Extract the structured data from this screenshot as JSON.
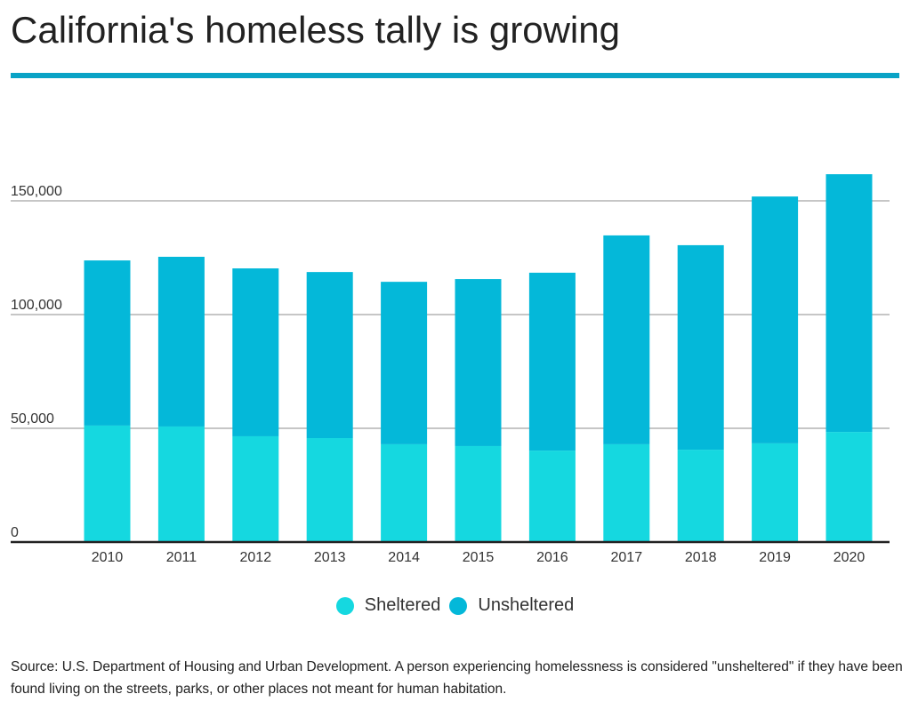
{
  "title": "California's homeless tally is growing",
  "colors": {
    "accent": "#0aa3c6",
    "sheltered": "#15d8e0",
    "unsheltered": "#04b8d9"
  },
  "legend": [
    {
      "label": "Sheltered",
      "color": "#15d8e0"
    },
    {
      "label": "Unsheltered",
      "color": "#04b8d9"
    }
  ],
  "source": "Source: U.S. Department of Housing and Urban Development. A person experiencing homelessness is considered \"unsheltered\" if they have been found living on the streets, parks, or other places not meant for human habitation.",
  "chart_data": {
    "type": "bar",
    "stacked": true,
    "title": "California's homeless tally is growing",
    "xlabel": "",
    "ylabel": "",
    "categories": [
      "2010",
      "2011",
      "2012",
      "2013",
      "2014",
      "2015",
      "2016",
      "2017",
      "2018",
      "2019",
      "2020"
    ],
    "series": [
      {
        "name": "Sheltered",
        "values": [
          51200,
          50800,
          46500,
          45700,
          43000,
          42200,
          40200,
          43000,
          40600,
          43400,
          48400
        ]
      },
      {
        "name": "Unsheltered",
        "values": [
          72600,
          74600,
          73800,
          73000,
          71400,
          73400,
          78200,
          91800,
          89900,
          108500,
          113300
        ]
      }
    ],
    "ylim": [
      0,
      160000
    ],
    "yticks": [
      0,
      50000,
      100000,
      150000
    ],
    "ytick_labels": [
      "0",
      "50,000",
      "100,000",
      "150,000"
    ],
    "grid": true,
    "legend_position": "bottom-center"
  }
}
